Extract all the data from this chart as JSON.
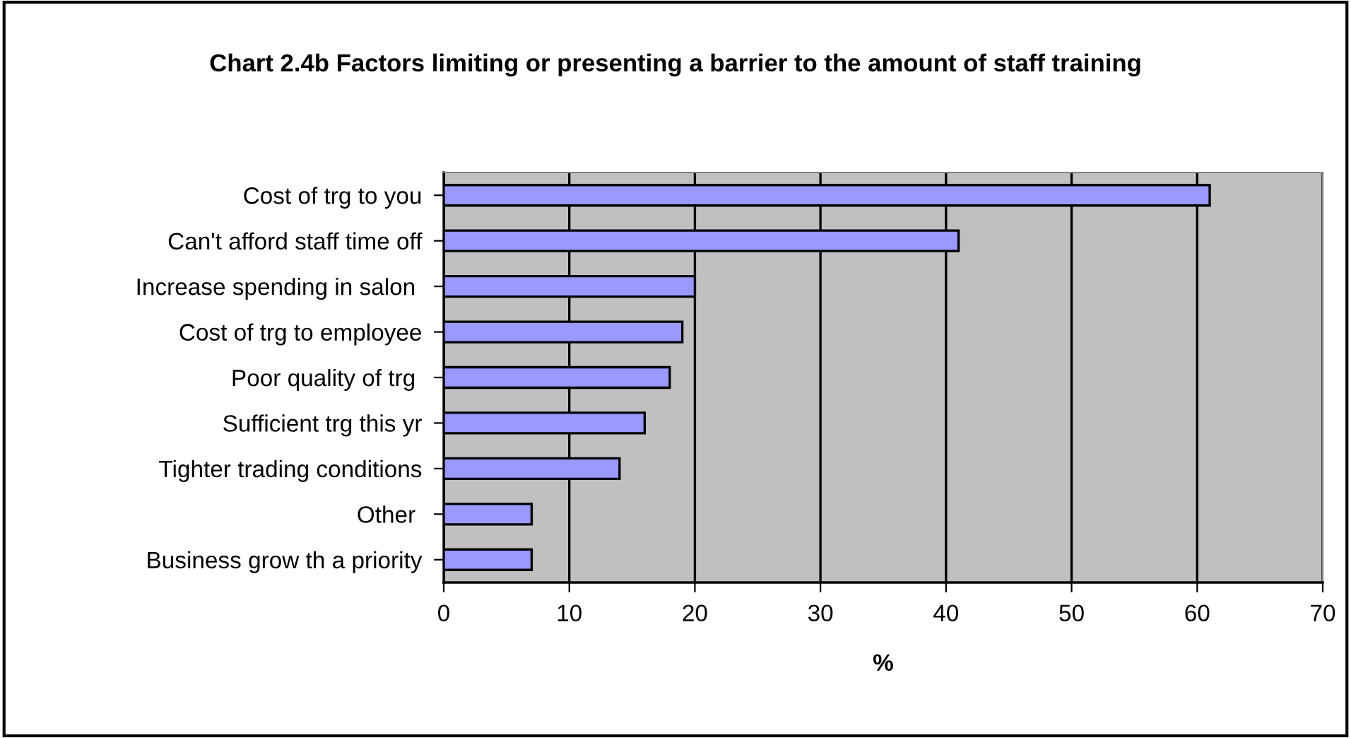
{
  "chart_data": {
    "type": "bar",
    "orientation": "horizontal",
    "title": "Chart 2.4b Factors limiting or presenting a barrier to the amount of staff training",
    "xlabel": "%",
    "categories": [
      "Cost of trg to you",
      "Can't afford staff time off",
      "Increase spending in salon ",
      "Cost of trg to employee",
      "Poor quality of trg ",
      "Sufficient trg this yr",
      "Tighter trading conditions",
      "Other ",
      "Business grow th a priority"
    ],
    "values": [
      61,
      41,
      20,
      19,
      18,
      16,
      14,
      7,
      7
    ],
    "color": "#9999ff",
    "xlim": [
      0,
      70
    ],
    "xticks": [
      0,
      10,
      20,
      30,
      40,
      50,
      60,
      70
    ],
    "grid": "x",
    "legend": false
  }
}
